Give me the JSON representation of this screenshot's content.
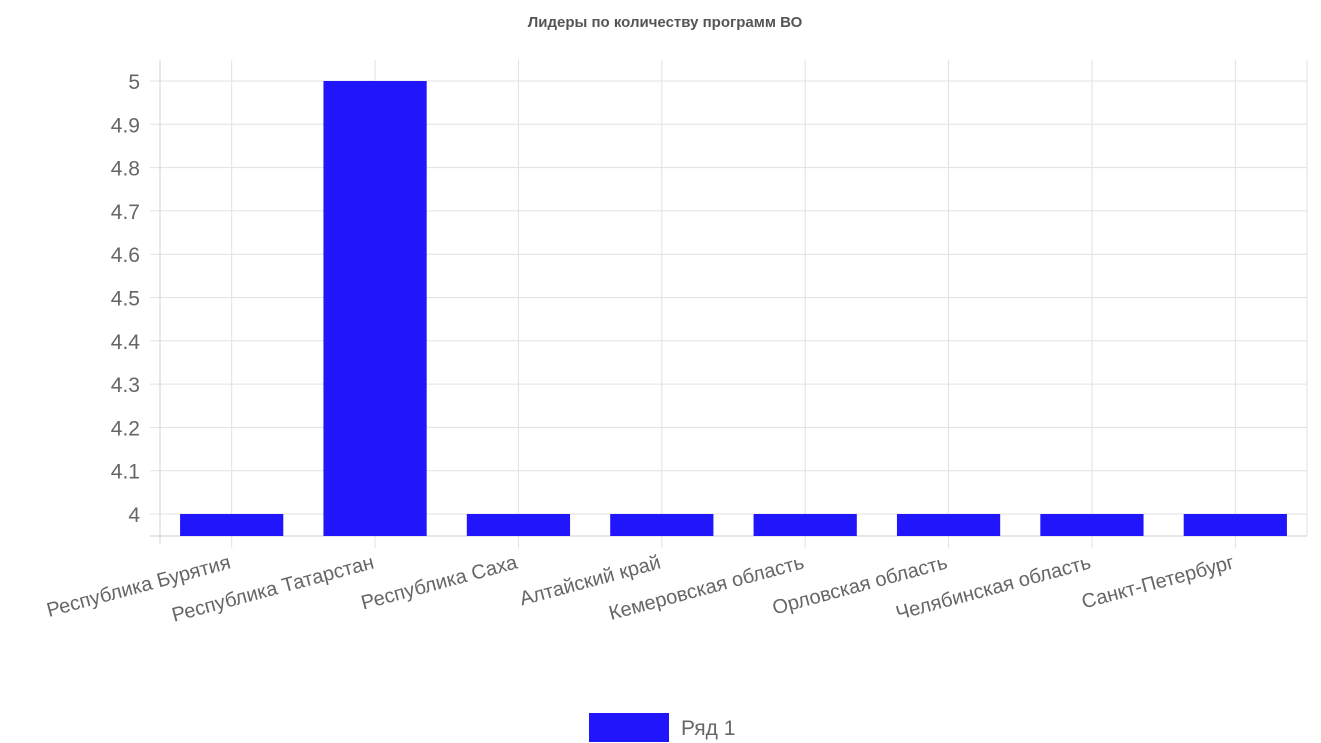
{
  "chart_data": {
    "type": "bar",
    "title": "Лидеры по количеству программ ВО",
    "xlabel": "",
    "ylabel": "",
    "categories": [
      "Республика Бурятия",
      "Республика Татарстан",
      "Республика Саха",
      "Алтайский край",
      "Кемеровская область",
      "Орловская область",
      "Челябинская область",
      "Санкт-Петербург"
    ],
    "series": [
      {
        "name": "Ряд 1",
        "color": "#2116fb",
        "values": [
          4,
          5,
          4,
          4,
          4,
          4,
          4,
          4
        ]
      }
    ],
    "ylim": [
      3.95,
      5.05
    ],
    "yticks": [
      "5",
      "4.9",
      "4.8",
      "4.7",
      "4.6",
      "4.5",
      "4.4",
      "4.3",
      "4.2",
      "4.1",
      "4"
    ],
    "grid": true,
    "legend": "bottom"
  }
}
